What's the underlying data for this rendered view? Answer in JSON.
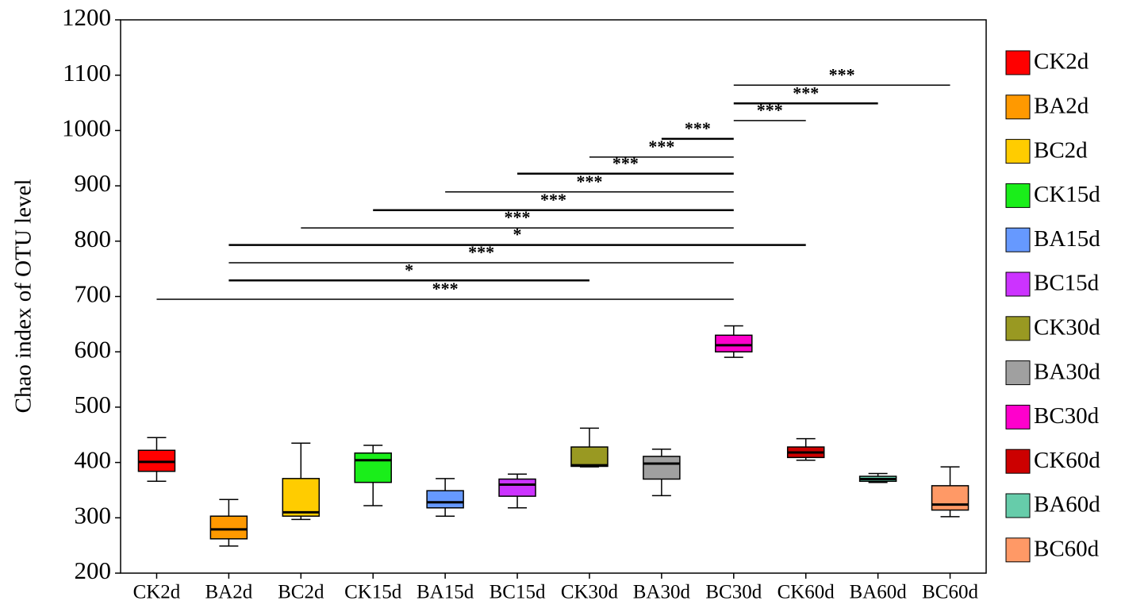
{
  "chart_data": {
    "type": "box",
    "y_label": "Chao index of OTU level",
    "ylim": [
      200,
      1200
    ],
    "yticks": [
      200,
      300,
      400,
      500,
      600,
      700,
      800,
      900,
      1000,
      1100,
      1200
    ],
    "categories": [
      "CK2d",
      "BA2d",
      "BC2d",
      "CK15d",
      "BA15d",
      "BC15d",
      "CK30d",
      "BA30d",
      "BC30d",
      "CK60d",
      "BA60d",
      "BC60d"
    ],
    "series": [
      {
        "name": "CK2d",
        "color": "#ff0000",
        "min": 366,
        "q1": 384,
        "median": 401,
        "q3": 422,
        "max": 445
      },
      {
        "name": "BA2d",
        "color": "#ff9900",
        "min": 249,
        "q1": 262,
        "median": 279,
        "q3": 303,
        "max": 333
      },
      {
        "name": "BC2d",
        "color": "#ffcc00",
        "min": 297,
        "q1": 303,
        "median": 310,
        "q3": 371,
        "max": 435
      },
      {
        "name": "CK15d",
        "color": "#1aee1a",
        "min": 322,
        "q1": 364,
        "median": 404,
        "q3": 417,
        "max": 431
      },
      {
        "name": "BA15d",
        "color": "#6699ff",
        "min": 303,
        "q1": 318,
        "median": 328,
        "q3": 349,
        "max": 371
      },
      {
        "name": "BC15d",
        "color": "#cc33ff",
        "min": 318,
        "q1": 339,
        "median": 360,
        "q3": 370,
        "max": 379
      },
      {
        "name": "CK30d",
        "color": "#999922",
        "min": 392,
        "q1": 393,
        "median": 395,
        "q3": 428,
        "max": 462
      },
      {
        "name": "BA30d",
        "color": "#a0a0a0",
        "min": 340,
        "q1": 370,
        "median": 398,
        "q3": 411,
        "max": 424
      },
      {
        "name": "BC30d",
        "color": "#ff00cc",
        "min": 590,
        "q1": 600,
        "median": 612,
        "q3": 630,
        "max": 647
      },
      {
        "name": "CK60d",
        "color": "#cc0000",
        "min": 404,
        "q1": 409,
        "median": 418,
        "q3": 428,
        "max": 443
      },
      {
        "name": "BA60d",
        "color": "#66ccaa",
        "min": 364,
        "q1": 366,
        "median": 370,
        "q3": 375,
        "max": 380
      },
      {
        "name": "BC60d",
        "color": "#ff9966",
        "min": 302,
        "q1": 314,
        "median": 324,
        "q3": 358,
        "max": 392
      }
    ],
    "significance": [
      {
        "from": "CK2d",
        "to": "BC30d",
        "y": 695,
        "label": "***"
      },
      {
        "from": "BA2d",
        "to": "CK30d",
        "y": 729,
        "label": "*"
      },
      {
        "from": "BA2d",
        "to": "BC30d",
        "y": 761,
        "label": "***"
      },
      {
        "from": "BA2d",
        "to": "CK60d",
        "y": 793,
        "label": "*"
      },
      {
        "from": "BC2d",
        "to": "BC30d",
        "y": 824,
        "label": "***"
      },
      {
        "from": "CK15d",
        "to": "BC30d",
        "y": 856,
        "label": "***"
      },
      {
        "from": "BA15d",
        "to": "BC30d",
        "y": 889,
        "label": "***"
      },
      {
        "from": "BC15d",
        "to": "BC30d",
        "y": 922,
        "label": "***"
      },
      {
        "from": "CK30d",
        "to": "BC30d",
        "y": 952,
        "label": "***"
      },
      {
        "from": "BA30d",
        "to": "BC30d",
        "y": 985,
        "label": "***"
      },
      {
        "from": "BC30d",
        "to": "CK60d",
        "y": 1018,
        "label": "***"
      },
      {
        "from": "BC30d",
        "to": "BA60d",
        "y": 1049,
        "label": "***"
      },
      {
        "from": "BC30d",
        "to": "BC60d",
        "y": 1082,
        "label": "***"
      }
    ]
  }
}
